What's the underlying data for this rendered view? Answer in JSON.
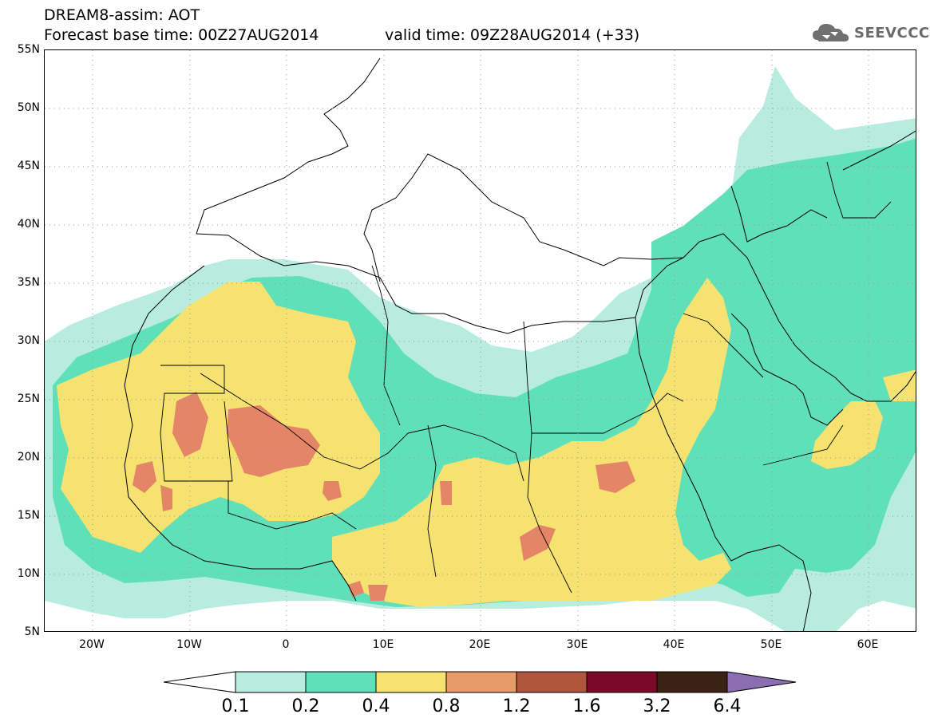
{
  "header": {
    "title_line1": "DREAM8-assim: AOT",
    "title_line2": "Forecast base time: 00Z27AUG2014",
    "valid_time": "valid time: 09Z28AUG2014 (+33)"
  },
  "logo": {
    "text": "SEEVCCC",
    "icon": "cloud-logo-icon"
  },
  "axes": {
    "lat_labels": [
      "55N",
      "50N",
      "45N",
      "40N",
      "35N",
      "30N",
      "25N",
      "20N",
      "15N",
      "10N",
      "5N"
    ],
    "lon_labels": [
      "20W",
      "10W",
      "0",
      "10E",
      "20E",
      "30E",
      "40E",
      "50E",
      "60E"
    ],
    "lat_range": [
      5,
      55
    ],
    "lon_range": [
      -25,
      65
    ]
  },
  "legend": {
    "labels": [
      "0.1",
      "0.2",
      "0.4",
      "0.8",
      "1.2",
      "1.6",
      "3.2",
      "6.4"
    ],
    "colors": [
      "#ffffff",
      "#b8ecdf",
      "#5fe0b9",
      "#f6e270",
      "#e89a6a",
      "#b0553e",
      "#7a0a28",
      "#3a2214",
      "#8b6db2"
    ]
  },
  "colors": {
    "c01": "#b8ecdf",
    "c02": "#5fe0b9",
    "c04": "#f6e270",
    "c08": "#e38566",
    "border": "#000000"
  }
}
